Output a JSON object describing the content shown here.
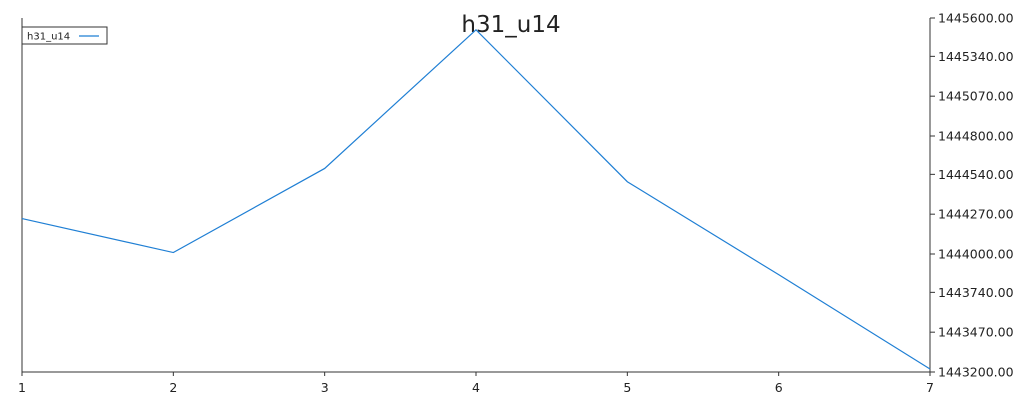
{
  "chart_data": {
    "type": "line",
    "title": "h31_u14",
    "xlabel": "",
    "ylabel": "",
    "x": [
      1,
      2,
      3,
      4,
      5,
      6,
      7
    ],
    "x_ticks": [
      "1",
      "2",
      "3",
      "4",
      "5",
      "6",
      "7"
    ],
    "xlim": [
      1,
      7
    ],
    "ylim": [
      1443200,
      1445600
    ],
    "y_ticks": [
      1443200,
      1443470,
      1443740,
      1444000,
      1444270,
      1444540,
      1444800,
      1445070,
      1445340,
      1445600
    ],
    "y_tick_labels": [
      "1443200.00",
      "1443470.00",
      "1443740.00",
      "1444000.00",
      "1444270.00",
      "1444540.00",
      "1444800.00",
      "1445070.00",
      "1445340.00",
      "1445600.00"
    ],
    "y_axis_side": "right",
    "grid": false,
    "legend_position": "top-left",
    "series": [
      {
        "name": "h31_u14",
        "color": "#1f7fd4",
        "values": [
          1444240,
          1444010,
          1444580,
          1445520,
          1444490,
          1443860,
          1443220
        ]
      }
    ]
  }
}
